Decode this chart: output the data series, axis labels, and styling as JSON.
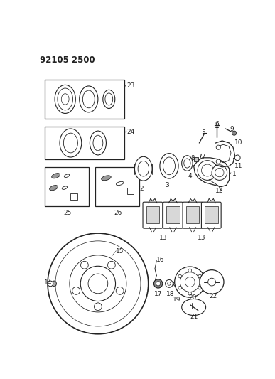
{
  "title": "92105 2500",
  "bg_color": "#ffffff",
  "lc": "#222222",
  "fig_width": 3.87,
  "fig_height": 5.33,
  "dpi": 100
}
